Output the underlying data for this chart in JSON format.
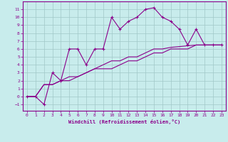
{
  "title": "",
  "xlabel": "Windchill (Refroidissement éolien,°C)",
  "ylabel": "",
  "bg_color": "#c8ecec",
  "grid_color": "#a0c8c8",
  "line_color": "#8b008b",
  "xlim": [
    -0.5,
    23.5
  ],
  "ylim": [
    -1.8,
    12.0
  ],
  "xticks": [
    0,
    1,
    2,
    3,
    4,
    5,
    6,
    7,
    8,
    9,
    10,
    11,
    12,
    13,
    14,
    15,
    16,
    17,
    18,
    19,
    20,
    21,
    22,
    23
  ],
  "yticks": [
    -1,
    0,
    1,
    2,
    3,
    4,
    5,
    6,
    7,
    8,
    9,
    10,
    11
  ],
  "series1_x": [
    0,
    1,
    2,
    3,
    4,
    5,
    6,
    7,
    8,
    9,
    10,
    11,
    12,
    13,
    14,
    15,
    16,
    17,
    18,
    19,
    20,
    21,
    22,
    23
  ],
  "series1_y": [
    0,
    0,
    -1,
    3,
    2,
    6,
    6,
    4,
    6,
    6,
    10,
    8.5,
    9.5,
    10,
    11,
    11.2,
    10,
    9.5,
    8.5,
    6.5,
    8.5,
    6.5,
    6.5,
    6.5
  ],
  "series2_x": [
    0,
    1,
    2,
    3,
    4,
    5,
    6,
    7,
    8,
    9,
    10,
    11,
    12,
    13,
    14,
    15,
    16,
    17,
    18,
    19,
    20,
    21,
    22,
    23
  ],
  "series2_y": [
    0,
    0,
    1.5,
    1.5,
    2,
    2,
    2.5,
    3,
    3.5,
    3.5,
    3.5,
    4,
    4.5,
    4.5,
    5,
    5.5,
    5.5,
    6,
    6,
    6,
    6.5,
    6.5,
    6.5,
    6.5
  ],
  "series3_x": [
    0,
    1,
    2,
    3,
    4,
    5,
    6,
    7,
    8,
    9,
    10,
    11,
    12,
    13,
    14,
    15,
    16,
    17,
    18,
    19,
    20,
    21,
    22,
    23
  ],
  "series3_y": [
    0,
    0,
    1.5,
    1.5,
    2,
    2.5,
    2.5,
    3,
    3.5,
    4,
    4.5,
    4.5,
    5,
    5,
    5.5,
    6,
    6,
    6.2,
    6.3,
    6.4,
    6.5,
    6.5,
    6.5,
    6.5
  ],
  "tick_fontsize": 4.5,
  "xlabel_fontsize": 5.0
}
